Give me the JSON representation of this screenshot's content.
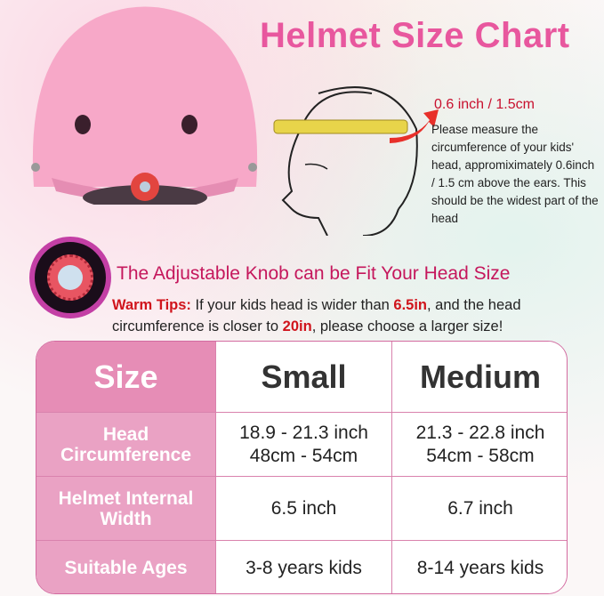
{
  "title": "Helmet Size Chart",
  "measure": {
    "distance": "0.6 inch / 1.5cm",
    "description": "Please measure the circumference of your kids' head, appromiximately 0.6inch / 1.5 cm above the ears. This should be the widest part of the head"
  },
  "knob_caption": "The Adjustable Knob can be Fit Your Head Size",
  "tips": {
    "label": "Warm Tips:",
    "text1": " If your kids head is wider than ",
    "value1": "6.5in",
    "text2": ", and the head circumference is closer to ",
    "value2": "20in",
    "text3": ", please choose a larger size!"
  },
  "table": {
    "header": [
      "Size",
      "Small",
      "Medium"
    ],
    "rows": [
      {
        "label": "Head Circumference",
        "small": [
          "18.9 - 21.3 inch",
          "48cm - 54cm"
        ],
        "medium": [
          "21.3 - 22.8 inch",
          "54cm - 58cm"
        ]
      },
      {
        "label": "Helmet Internal Width",
        "small": [
          "6.5 inch"
        ],
        "medium": [
          "6.7 inch"
        ]
      },
      {
        "label": "Suitable Ages",
        "small": [
          "3-8 years kids"
        ],
        "medium": [
          "8-14 years kids"
        ]
      }
    ]
  },
  "colors": {
    "title": "#e8579e",
    "accent_red": "#d0141c",
    "table_label": "#eaa2c4",
    "helmet": "#f7a8c8"
  }
}
